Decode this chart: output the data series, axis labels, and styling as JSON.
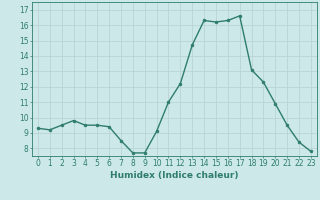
{
  "x": [
    0,
    1,
    2,
    3,
    4,
    5,
    6,
    7,
    8,
    9,
    10,
    11,
    12,
    13,
    14,
    15,
    16,
    17,
    18,
    19,
    20,
    21,
    22,
    23
  ],
  "y": [
    9.3,
    9.2,
    9.5,
    9.8,
    9.5,
    9.5,
    9.4,
    8.5,
    7.7,
    7.7,
    9.1,
    11.0,
    12.2,
    14.7,
    16.3,
    16.2,
    16.3,
    16.6,
    13.1,
    12.3,
    10.9,
    9.5,
    8.4,
    7.8
  ],
  "line_color": "#2e7d6e",
  "marker": "o",
  "marker_size": 2.0,
  "bg_color": "#cce8e8",
  "grid_color": "#b8d4d4",
  "xlabel": "Humidex (Indice chaleur)",
  "ylabel_ticks": [
    8,
    9,
    10,
    11,
    12,
    13,
    14,
    15,
    16,
    17
  ],
  "xlim": [
    -0.5,
    23.5
  ],
  "ylim": [
    7.5,
    17.5
  ],
  "tick_fontsize": 5.5,
  "xlabel_fontsize": 6.5,
  "linewidth": 1.0
}
